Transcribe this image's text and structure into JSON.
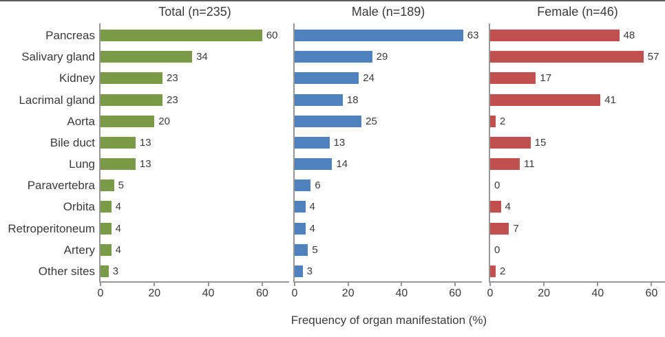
{
  "figure": {
    "background": "#ffffff",
    "top_rule_color": "#595959",
    "axis_color": "#969696",
    "text_color": "#3a3a3a"
  },
  "chart_data": {
    "type": "bar",
    "orientation": "horizontal",
    "layout": "three side-by-side panels sharing category axis",
    "xlabel": "Frequency of organ manifestation (%)",
    "categories": [
      "Pancreas",
      "Salivary gland",
      "Kidney",
      "Lacrimal gland",
      "Aorta",
      "Bile duct",
      "Lung",
      "Paravertebra",
      "Orbita",
      "Retroperitoneum",
      "Artery",
      "Other sites"
    ],
    "xticks": [
      0,
      20,
      40,
      60
    ],
    "grid": false,
    "value_labels": true,
    "series": [
      {
        "name": "Total (n=235)",
        "color": "#7a9a48",
        "xlim": [
          0,
          70
        ],
        "values": [
          60,
          34,
          23,
          23,
          20,
          13,
          13,
          5,
          4,
          4,
          4,
          3
        ]
      },
      {
        "name": "Male (n=189)",
        "color": "#4f81bd",
        "xlim": [
          0,
          70
        ],
        "values": [
          63,
          29,
          24,
          18,
          25,
          13,
          14,
          6,
          4,
          4,
          5,
          3
        ]
      },
      {
        "name": "Female (n=46)",
        "color": "#c0504d",
        "xlim": [
          0,
          65
        ],
        "values": [
          48,
          57,
          17,
          41,
          2,
          15,
          11,
          0,
          4,
          7,
          0,
          2
        ]
      }
    ]
  }
}
